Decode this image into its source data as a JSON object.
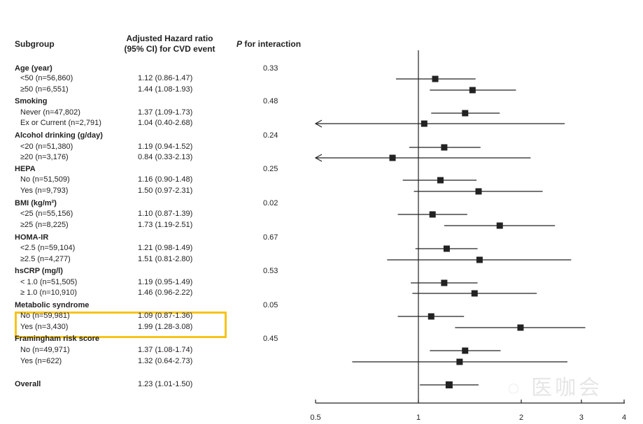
{
  "headers": {
    "subgroup": "Subgroup",
    "hr_line1": "Adjusted Hazard ratio",
    "hr_line2": "(95% CI) for CVD event",
    "p_italic": "P",
    "p_rest": " for interaction"
  },
  "watermark": "医咖会",
  "chart_data": {
    "type": "forest",
    "x_scale": "log",
    "xlim": [
      0.5,
      4
    ],
    "reference_line": 1,
    "x_ticks": [
      "0.5",
      "1",
      "2",
      "3",
      "4"
    ],
    "highlighted_rows": [
      "No (n=59,981)",
      "Yes (n=3,430)"
    ],
    "highlight_color": "#f7c31a",
    "rows": [
      {
        "label": "Age (year)",
        "header": true,
        "p": "0.33"
      },
      {
        "label": "<50 (n=56,860)",
        "ci_text": "1.12 (0.86-1.47)",
        "hr": 1.12,
        "lo": 0.86,
        "hi": 1.47
      },
      {
        "label": "≥50 (n=6,551)",
        "ci_text": "1.44 (1.08-1.93)",
        "hr": 1.44,
        "lo": 1.08,
        "hi": 1.93
      },
      {
        "label": "Smoking",
        "header": true,
        "p": "0.48"
      },
      {
        "label": "Never (n=47,802)",
        "ci_text": "1.37 (1.09-1.73)",
        "hr": 1.37,
        "lo": 1.09,
        "hi": 1.73
      },
      {
        "label": "Ex or Current (n=2,791)",
        "ci_text": "1.04 (0.40-2.68)",
        "hr": 1.04,
        "lo": 0.4,
        "hi": 2.68
      },
      {
        "label": "Alcohol drinking (g/day)",
        "header": true,
        "p": "0.24"
      },
      {
        "label": "<20 (n=51,380)",
        "ci_text": "1.19 (0.94-1.52)",
        "hr": 1.19,
        "lo": 0.94,
        "hi": 1.52
      },
      {
        "label": "≥20 (n=3,176)",
        "ci_text": "0.84 (0.33-2.13)",
        "hr": 0.84,
        "lo": 0.33,
        "hi": 2.13
      },
      {
        "label": "HEPA",
        "header": true,
        "p": "0.25"
      },
      {
        "label": "No (n=51,509)",
        "ci_text": "1.16 (0.90-1.48)",
        "hr": 1.16,
        "lo": 0.9,
        "hi": 1.48
      },
      {
        "label": "Yes (n=9,793)",
        "ci_text": "1.50 (0.97-2.31)",
        "hr": 1.5,
        "lo": 0.97,
        "hi": 2.31
      },
      {
        "label": "BMI (kg/m²)",
        "header": true,
        "p": "0.02"
      },
      {
        "label": "<25 (n=55,156)",
        "ci_text": "1.10 (0.87-1.39)",
        "hr": 1.1,
        "lo": 0.87,
        "hi": 1.39
      },
      {
        "label": "≥25 (n=8,225)",
        "ci_text": "1.73 (1.19-2.51)",
        "hr": 1.73,
        "lo": 1.19,
        "hi": 2.51
      },
      {
        "label": "HOMA-IR",
        "header": true,
        "p": "0.67"
      },
      {
        "label": "<2.5 (n=59,104)",
        "ci_text": "1.21 (0.98-1.49)",
        "hr": 1.21,
        "lo": 0.98,
        "hi": 1.49
      },
      {
        "label": "≥2.5 (n=4,277)",
        "ci_text": "1.51 (0.81-2.80)",
        "hr": 1.51,
        "lo": 0.81,
        "hi": 2.8
      },
      {
        "label": "hsCRP (mg/l)",
        "header": true,
        "p": "0.53"
      },
      {
        "label": "< 1.0 (n=51,505)",
        "ci_text": "1.19 (0.95-1.49)",
        "hr": 1.19,
        "lo": 0.95,
        "hi": 1.49
      },
      {
        "label": "≥ 1.0 (n=10,910)",
        "ci_text": "1.46 (0.96-2.22)",
        "hr": 1.46,
        "lo": 0.96,
        "hi": 2.22
      },
      {
        "label": "Metabolic syndrome",
        "header": true,
        "p": "0.05"
      },
      {
        "label": "No (n=59,981)",
        "ci_text": "1.09 (0.87-1.36)",
        "hr": 1.09,
        "lo": 0.87,
        "hi": 1.36
      },
      {
        "label": "Yes (n=3,430)",
        "ci_text": "1.99 (1.28-3.08)",
        "hr": 1.99,
        "lo": 1.28,
        "hi": 3.08
      },
      {
        "label": "Framingham risk score",
        "header": true,
        "p": "0.45"
      },
      {
        "label": "No (n=49,971)",
        "ci_text": "1.37 (1.08-1.74)",
        "hr": 1.37,
        "lo": 1.08,
        "hi": 1.74
      },
      {
        "label": "Yes (n=622)",
        "ci_text": "1.32 (0.64-2.73)",
        "hr": 1.32,
        "lo": 0.64,
        "hi": 2.73
      },
      {
        "label": "Overall",
        "header": true,
        "overall": true,
        "ci_text": "1.23 (1.01-1.50)",
        "hr": 1.23,
        "lo": 1.01,
        "hi": 1.5
      }
    ]
  }
}
